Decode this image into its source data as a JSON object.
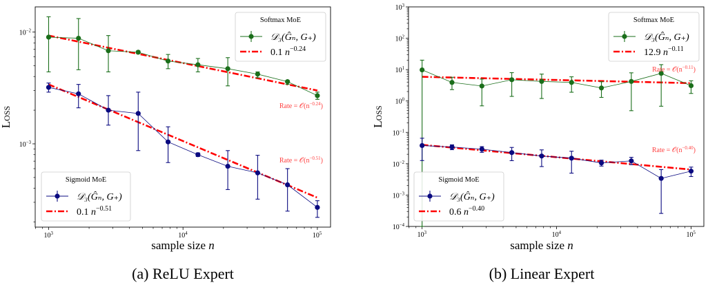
{
  "colors": {
    "softmax": "#1a6e1a",
    "sigmoid": "#0a0a80",
    "fit": "#ff0000",
    "annotation": "#ff4040"
  },
  "chart_data": [
    {
      "type": "line",
      "caption": "(a) ReLU Expert",
      "xlabel": "sample size",
      "xlabel_var": "n",
      "ylabel": "Loss",
      "xscale": "log",
      "yscale": "log",
      "xlim_log10": [
        2.9,
        5.098
      ],
      "ylim_log10": [
        -3.745,
        -1.775
      ],
      "xticks": [
        {
          "base": "10",
          "exp": "3",
          "v": 3
        },
        {
          "base": "10",
          "exp": "4",
          "v": 4
        },
        {
          "base": "10",
          "exp": "5",
          "v": 5
        }
      ],
      "yticks": [
        {
          "base": "10",
          "exp": "−3",
          "v": -3
        },
        {
          "base": "10",
          "exp": "−2",
          "v": -2
        }
      ],
      "x": [
        1000,
        1668,
        2783,
        4642,
        7743,
        12915,
        21544,
        35938,
        59948,
        100000
      ],
      "series": [
        {
          "name": "Softmax MoE",
          "key": "softmax",
          "legend_title": "Softmax MoE",
          "label": "𝒟₃(Ĝₙ, G₊)",
          "values": [
            0.009,
            0.0088,
            0.0068,
            0.0066,
            0.0055,
            0.0051,
            0.0047,
            0.0042,
            0.0036,
            0.0027
          ],
          "err_low": [
            0.0044,
            0.0046,
            0.0044,
            0.0064,
            0.0047,
            0.0044,
            0.0033,
            0.0039,
            0.0034,
            0.0025
          ],
          "err_high": [
            0.0137,
            0.0132,
            0.0093,
            0.0068,
            0.0063,
            0.0058,
            0.0059,
            0.0044,
            0.0037,
            0.0029
          ],
          "fit": {
            "coef": "0.1",
            "var": "n",
            "exp": "−0.24",
            "start": 0.0093,
            "end": 0.003
          },
          "rate": {
            "prefix": "Rate = 𝒪(n",
            "exp": "−0.24",
            "suffix": ")"
          }
        },
        {
          "name": "Sigmoid MoE",
          "key": "sigmoid",
          "legend_title": "Sigmoid MoE",
          "label": "𝒟₃(Ĝₙ, G₊)",
          "values": [
            0.0032,
            0.0028,
            0.002,
            0.00187,
            0.00104,
            0.0008,
            0.00063,
            0.00055,
            0.00043,
            0.00027
          ],
          "err_low": [
            0.0029,
            0.0021,
            0.00147,
            0.00087,
            0.00068,
            0.00077,
            0.00039,
            0.00032,
            0.00025,
            0.00022
          ],
          "err_high": [
            0.0035,
            0.0034,
            0.0027,
            0.0029,
            0.00142,
            0.00083,
            0.00087,
            0.00079,
            0.0006,
            0.00031
          ],
          "fit": {
            "coef": "0.1",
            "var": "n",
            "exp": "−0.51",
            "start": 0.0034,
            "end": 0.00033
          },
          "rate": {
            "prefix": "Rate = 𝒪(n",
            "exp": "−0.51",
            "suffix": ")"
          }
        }
      ]
    },
    {
      "type": "line",
      "caption": "(b) Linear Expert",
      "xlabel": "sample size",
      "xlabel_var": "n",
      "ylabel": "Loss",
      "xscale": "log",
      "yscale": "log",
      "xlim_log10": [
        2.899,
        5.095
      ],
      "ylim_log10": [
        -4,
        3
      ],
      "xticks": [
        {
          "base": "10",
          "exp": "3",
          "v": 3
        },
        {
          "base": "10",
          "exp": "4",
          "v": 4
        },
        {
          "base": "10",
          "exp": "5",
          "v": 5
        }
      ],
      "yticks": [
        {
          "base": "10",
          "exp": "−4",
          "v": -4
        },
        {
          "base": "10",
          "exp": "−3",
          "v": -3
        },
        {
          "base": "10",
          "exp": "−2",
          "v": -2
        },
        {
          "base": "10",
          "exp": "−1",
          "v": -1
        },
        {
          "base": "10",
          "exp": "0",
          "v": 0
        },
        {
          "base": "10",
          "exp": "1",
          "v": 1
        },
        {
          "base": "10",
          "exp": "2",
          "v": 2
        },
        {
          "base": "10",
          "exp": "3",
          "v": 3
        }
      ],
      "x": [
        1000,
        1668,
        2783,
        4642,
        7743,
        12915,
        21544,
        35938,
        59948,
        100000
      ],
      "series": [
        {
          "name": "Softmax MoE",
          "key": "softmax",
          "legend_title": "Softmax MoE",
          "label": "𝒟₃(Ĝₙ, G₊)",
          "values": [
            9.8,
            3.9,
            3.0,
            4.75,
            4.2,
            3.9,
            2.6,
            4.2,
            7.6,
            3.07
          ],
          "err_low": [
            0.0001,
            2.3,
            0.7,
            1.4,
            1.2,
            1.9,
            1.3,
            0.49,
            0.68,
            1.74
          ],
          "err_high": [
            20,
            5.7,
            5.0,
            8.0,
            7.2,
            5.9,
            4.1,
            7.9,
            14.4,
            4.4
          ],
          "fit": {
            "coef": "12.9",
            "var": "n",
            "exp": "−0.11",
            "start": 5.9,
            "end": 3.7
          },
          "rate": {
            "prefix": "Rate = 𝒪(n",
            "exp": "−0.11",
            "suffix": ")"
          }
        },
        {
          "name": "Sigmoid MoE",
          "key": "sigmoid",
          "legend_title": "Sigmoid MoE",
          "label": "𝒟₃(Ĝₙ, G₊)",
          "values": [
            0.038,
            0.034,
            0.029,
            0.0226,
            0.0176,
            0.015,
            0.0106,
            0.0123,
            0.0034,
            0.0058
          ],
          "err_low": [
            0.0126,
            0.028,
            0.023,
            0.0125,
            0.0081,
            0.005,
            0.0084,
            0.0093,
            0.00026,
            0.0039
          ],
          "err_high": [
            0.065,
            0.04,
            0.035,
            0.033,
            0.0276,
            0.025,
            0.013,
            0.016,
            0.0065,
            0.0078
          ],
          "fit": {
            "coef": "0.6",
            "var": "n",
            "exp": "−0.40",
            "start": 0.04,
            "end": 0.0065
          },
          "rate": {
            "prefix": "Rate = 𝒪(n",
            "exp": "−0.40",
            "suffix": ")"
          }
        }
      ]
    }
  ]
}
